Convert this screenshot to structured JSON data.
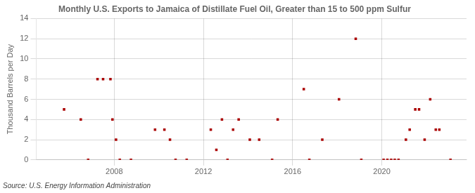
{
  "chart_data": {
    "type": "scatter",
    "title": "Monthly U.S. Exports to Jamaica of Distillate Fuel Oil, Greater than 15 to 500 ppm Sulfur",
    "ylabel": "Thousand Barrels per Day",
    "source": "Source: U.S. Energy Information Administration",
    "color": "#aa0000",
    "marker": "square",
    "grid": true,
    "xlim": [
      2004.5,
      2023.8
    ],
    "xticks": [
      2008,
      2012,
      2016,
      2020
    ],
    "ylim": [
      0,
      14
    ],
    "yticks": [
      0,
      2,
      4,
      6,
      8,
      10,
      12,
      14
    ],
    "x": [
      2005.75,
      2006.5,
      2006.83,
      2007.25,
      2007.5,
      2007.83,
      2007.92,
      2008.08,
      2008.25,
      2008.75,
      2009.83,
      2010.25,
      2010.5,
      2010.75,
      2011.25,
      2012.33,
      2012.58,
      2012.83,
      2013.08,
      2013.33,
      2013.58,
      2014.08,
      2014.5,
      2015.08,
      2015.33,
      2016.5,
      2016.75,
      2017.33,
      2018.08,
      2018.83,
      2019.08,
      2020.08,
      2020.25,
      2020.42,
      2020.58,
      2020.75,
      2021.08,
      2021.25,
      2021.5,
      2021.67,
      2021.92,
      2022.17,
      2022.42,
      2022.58,
      2023.08
    ],
    "values": [
      5,
      4,
      0,
      8,
      8,
      8,
      4,
      2,
      0,
      0,
      3,
      3,
      2,
      0,
      0,
      3,
      1,
      4,
      0,
      3,
      4,
      2,
      2,
      0,
      4,
      7,
      0,
      2,
      6,
      12,
      0,
      0,
      0,
      0,
      0,
      0,
      2,
      3,
      5,
      5,
      2,
      6,
      3,
      3,
      0
    ]
  }
}
